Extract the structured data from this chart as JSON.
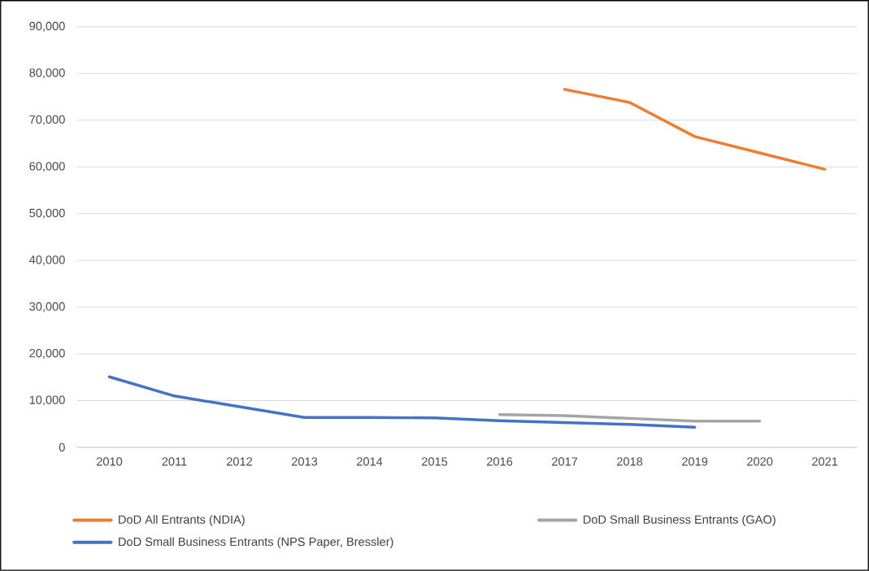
{
  "chart_data": {
    "type": "line",
    "categories": [
      "2010",
      "2011",
      "2012",
      "2013",
      "2014",
      "2015",
      "2016",
      "2017",
      "2018",
      "2019",
      "2020",
      "2021"
    ],
    "series": [
      {
        "name": "DoD All Entrants (NDIA)",
        "color": "#ed7d31",
        "values": [
          null,
          null,
          null,
          null,
          null,
          null,
          null,
          76600,
          73800,
          66500,
          63000,
          59500
        ]
      },
      {
        "name": "DoD Small Business Entrants (GAO)",
        "color": "#a5a5a5",
        "values": [
          null,
          null,
          null,
          null,
          null,
          null,
          7000,
          6800,
          6200,
          5600,
          5600,
          null
        ]
      },
      {
        "name": "DoD Small Business Entrants (NPS Paper, Bressler)",
        "color": "#4472c4",
        "values": [
          15100,
          11000,
          8700,
          6400,
          6400,
          6300,
          5700,
          5300,
          4900,
          4300,
          null,
          null
        ]
      }
    ],
    "ylim": [
      0,
      90000
    ],
    "yticks": [
      {
        "value": 0,
        "label": "0"
      },
      {
        "value": 10000,
        "label": "10,000"
      },
      {
        "value": 20000,
        "label": "20,000"
      },
      {
        "value": 30000,
        "label": "30,000"
      },
      {
        "value": 40000,
        "label": "40,000"
      },
      {
        "value": 50000,
        "label": "50,000"
      },
      {
        "value": 60000,
        "label": "60,000"
      },
      {
        "value": 70000,
        "label": "70,000"
      },
      {
        "value": 80000,
        "label": "80,000"
      },
      {
        "value": 90000,
        "label": "90,000"
      }
    ],
    "grid": "y",
    "legend": "bottom",
    "marker": "none",
    "line_style": "solid"
  }
}
